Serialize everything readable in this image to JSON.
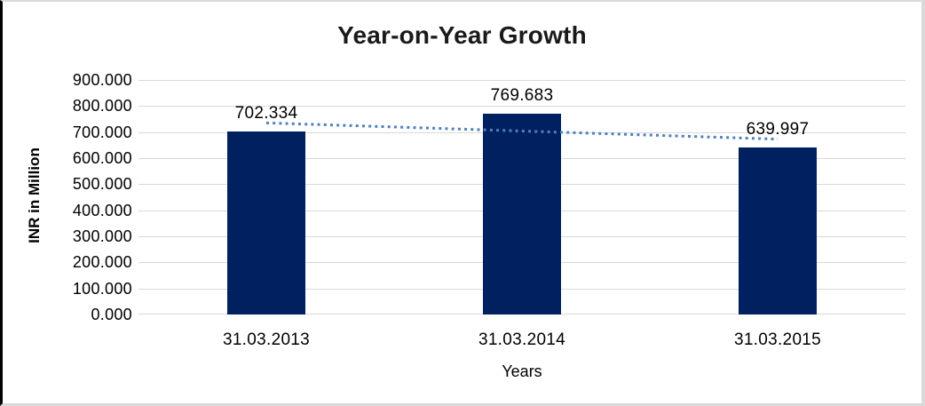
{
  "window": {
    "background": "#FFFFFF"
  },
  "chart_data": {
    "type": "bar",
    "title": "Year-on-Year Growth",
    "categories": [
      "31.03.2013",
      "31.03.2014",
      "31.03.2015"
    ],
    "values": [
      702.334,
      769.683,
      639.997
    ],
    "data_labels": [
      "702.334",
      "769.683",
      "639.997"
    ],
    "xlabel": "Years",
    "ylabel": "INR in Million",
    "ylim": [
      0,
      900
    ],
    "ytick_labels": [
      "0.000",
      "100.000",
      "200.000",
      "300.000",
      "400.000",
      "500.000",
      "600.000",
      "700.000",
      "800.000",
      "900.000"
    ],
    "grid": true,
    "legend_position": "none",
    "bar_color": "#002060",
    "gridline_color": "#D9D9D9",
    "trendline": {
      "fit": "linear",
      "style": "dotted",
      "color": "#4F81BD"
    }
  }
}
